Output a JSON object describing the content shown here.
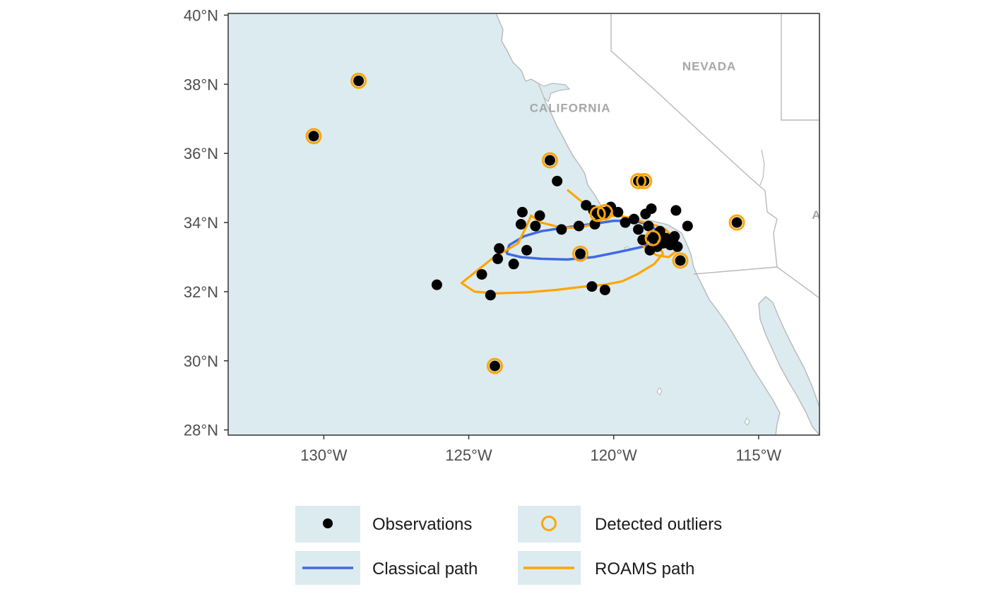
{
  "chart_data": {
    "type": "scatter",
    "title": "",
    "xlabel": "",
    "ylabel": "",
    "xlim": [
      -133.3,
      -112.9
    ],
    "ylim": [
      27.85,
      40.05
    ],
    "x_ticks": [
      {
        "value": -130,
        "label": "130°W"
      },
      {
        "value": -125,
        "label": "125°W"
      },
      {
        "value": -120,
        "label": "120°W"
      },
      {
        "value": -115,
        "label": "115°W"
      }
    ],
    "y_ticks": [
      {
        "value": 28,
        "label": "28°N"
      },
      {
        "value": 30,
        "label": "30°N"
      },
      {
        "value": 32,
        "label": "32°N"
      },
      {
        "value": 34,
        "label": "34°N"
      },
      {
        "value": 36,
        "label": "36°N"
      },
      {
        "value": 38,
        "label": "38°N"
      },
      {
        "value": 40,
        "label": "40°N"
      }
    ],
    "grid": false,
    "region_labels": [
      {
        "text": "NEVADA",
        "lon": -116.7,
        "lat": 38.4
      },
      {
        "text": "CALIFORNIA",
        "lon": -121.5,
        "lat": 37.2
      },
      {
        "text": "A",
        "lon": -113.0,
        "lat": 34.1
      }
    ],
    "colors": {
      "ocean": "#dcebf0",
      "land": "#ffffff",
      "border": "#b8b8b8",
      "observation": "#000000",
      "outlier": "#ffa500",
      "classical_path": "#4169e1",
      "roams_path": "#ffa500"
    },
    "observations": [
      [
        -130.35,
        36.5
      ],
      [
        -128.8,
        38.1
      ],
      [
        -126.1,
        32.2
      ],
      [
        -124.1,
        29.85
      ],
      [
        -124.55,
        32.5
      ],
      [
        -124.25,
        31.9
      ],
      [
        -124.0,
        32.95
      ],
      [
        -123.95,
        33.25
      ],
      [
        -123.45,
        32.8
      ],
      [
        -123.2,
        33.95
      ],
      [
        -123.15,
        34.3
      ],
      [
        -123.0,
        33.2
      ],
      [
        -122.7,
        33.9
      ],
      [
        -122.55,
        34.2
      ],
      [
        -122.2,
        35.8
      ],
      [
        -121.95,
        35.2
      ],
      [
        -121.8,
        33.8
      ],
      [
        -121.15,
        33.1
      ],
      [
        -121.2,
        33.9
      ],
      [
        -120.95,
        34.5
      ],
      [
        -120.7,
        34.35
      ],
      [
        -120.65,
        33.95
      ],
      [
        -120.75,
        32.15
      ],
      [
        -120.3,
        32.05
      ],
      [
        -120.35,
        34.25
      ],
      [
        -120.1,
        34.45
      ],
      [
        -119.85,
        34.3
      ],
      [
        -119.6,
        34.0
      ],
      [
        -119.3,
        34.1
      ],
      [
        -119.15,
        33.8
      ],
      [
        -119.0,
        33.5
      ],
      [
        -118.9,
        34.25
      ],
      [
        -118.8,
        33.9
      ],
      [
        -118.75,
        33.2
      ],
      [
        -118.7,
        34.4
      ],
      [
        -118.6,
        33.6
      ],
      [
        -118.5,
        33.3
      ],
      [
        -118.4,
        33.75
      ],
      [
        -118.3,
        33.4
      ],
      [
        -118.2,
        33.55
      ],
      [
        -118.05,
        33.35
      ],
      [
        -117.9,
        33.6
      ],
      [
        -117.8,
        33.3
      ],
      [
        -117.7,
        32.9
      ],
      [
        -117.85,
        34.35
      ],
      [
        -117.45,
        33.9
      ],
      [
        -115.75,
        34.0
      ],
      [
        -119.15,
        35.2
      ],
      [
        -118.95,
        35.2
      ],
      [
        -120.55,
        34.25
      ],
      [
        -120.3,
        34.3
      ],
      [
        -118.65,
        33.55
      ],
      [
        -117.95,
        33.5
      ]
    ],
    "outliers": [
      [
        -130.35,
        36.5
      ],
      [
        -128.8,
        38.1
      ],
      [
        -124.1,
        29.85
      ],
      [
        -122.2,
        35.8
      ],
      [
        -121.15,
        33.1
      ],
      [
        -120.55,
        34.25
      ],
      [
        -120.3,
        34.3
      ],
      [
        -119.15,
        35.2
      ],
      [
        -118.95,
        35.2
      ],
      [
        -118.65,
        33.55
      ],
      [
        -117.7,
        32.9
      ],
      [
        -115.75,
        34.0
      ]
    ],
    "classical_path": [
      [
        -123.7,
        33.1
      ],
      [
        -123.6,
        33.35
      ],
      [
        -123.1,
        33.6
      ],
      [
        -122.5,
        33.75
      ],
      [
        -121.7,
        33.85
      ],
      [
        -120.8,
        33.95
      ],
      [
        -120.0,
        34.05
      ],
      [
        -119.3,
        34.05
      ],
      [
        -118.8,
        33.95
      ],
      [
        -118.4,
        33.7
      ],
      [
        -118.5,
        33.45
      ],
      [
        -119.0,
        33.3
      ],
      [
        -119.8,
        33.15
      ],
      [
        -120.7,
        33.0
      ],
      [
        -121.6,
        32.93
      ],
      [
        -122.5,
        32.95
      ],
      [
        -123.2,
        33.0
      ],
      [
        -123.7,
        33.1
      ]
    ],
    "roams_path": [
      [
        -121.6,
        34.95
      ],
      [
        -121.1,
        34.6
      ],
      [
        -120.7,
        34.35
      ],
      [
        -120.25,
        34.2
      ],
      [
        -119.8,
        34.2
      ],
      [
        -119.3,
        34.1
      ],
      [
        -118.9,
        34.0
      ],
      [
        -118.5,
        33.9
      ],
      [
        -118.2,
        33.8
      ],
      [
        -118.0,
        33.6
      ],
      [
        -117.8,
        33.2
      ],
      [
        -118.1,
        33.0
      ],
      [
        -118.5,
        33.05
      ],
      [
        -118.9,
        33.25
      ],
      [
        -119.15,
        33.5
      ],
      [
        -118.8,
        33.65
      ],
      [
        -118.5,
        33.45
      ],
      [
        -118.3,
        33.1
      ],
      [
        -118.6,
        32.8
      ],
      [
        -119.2,
        32.5
      ],
      [
        -119.7,
        32.3
      ],
      [
        -120.3,
        32.2
      ],
      [
        -121.0,
        32.15
      ],
      [
        -122.0,
        32.05
      ],
      [
        -123.0,
        31.98
      ],
      [
        -124.1,
        31.95
      ],
      [
        -124.8,
        32.0
      ],
      [
        -125.25,
        32.25
      ],
      [
        -124.8,
        32.55
      ],
      [
        -124.2,
        32.95
      ],
      [
        -123.7,
        33.2
      ],
      [
        -123.3,
        33.4
      ],
      [
        -123.0,
        33.9
      ],
      [
        -122.85,
        34.2
      ],
      [
        -122.5,
        34.0
      ],
      [
        -121.8,
        33.85
      ],
      [
        -121.2,
        33.85
      ],
      [
        -120.7,
        33.95
      ],
      [
        -120.3,
        34.2
      ],
      [
        -120.65,
        34.35
      ]
    ]
  },
  "legend": {
    "items": [
      {
        "key": "observations",
        "label": "Observations"
      },
      {
        "key": "outliers",
        "label": "Detected outliers"
      },
      {
        "key": "classical",
        "label": "Classical path"
      },
      {
        "key": "roams",
        "label": "ROAMS path"
      }
    ],
    "key_background": "#dcebf0"
  }
}
